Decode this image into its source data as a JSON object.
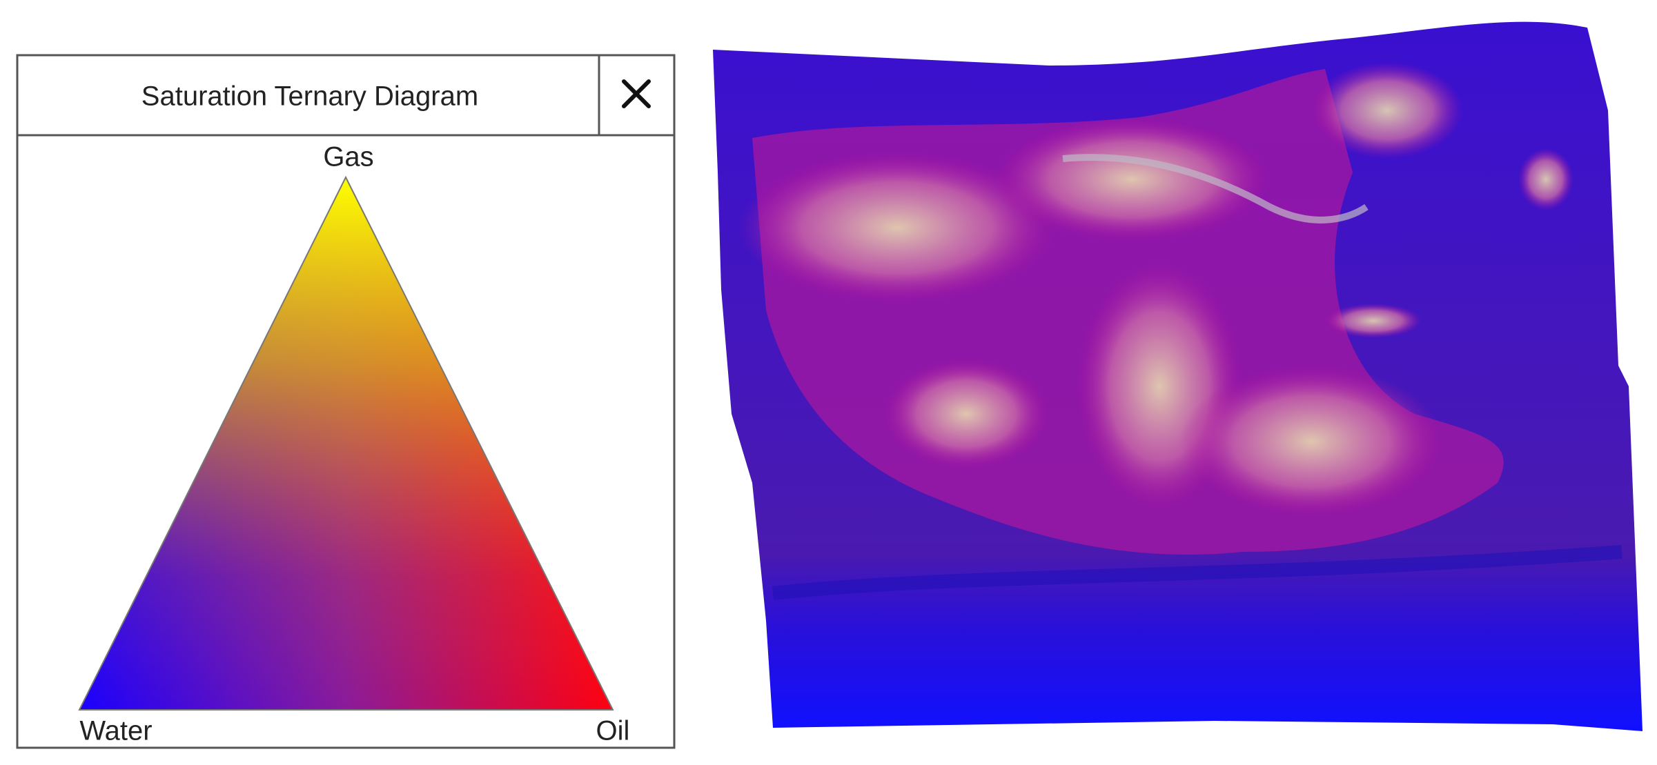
{
  "panel": {
    "title": "Saturation Ternary Diagram"
  },
  "ternary": {
    "top": "Gas",
    "left": "Water",
    "right": "Oil"
  }
}
